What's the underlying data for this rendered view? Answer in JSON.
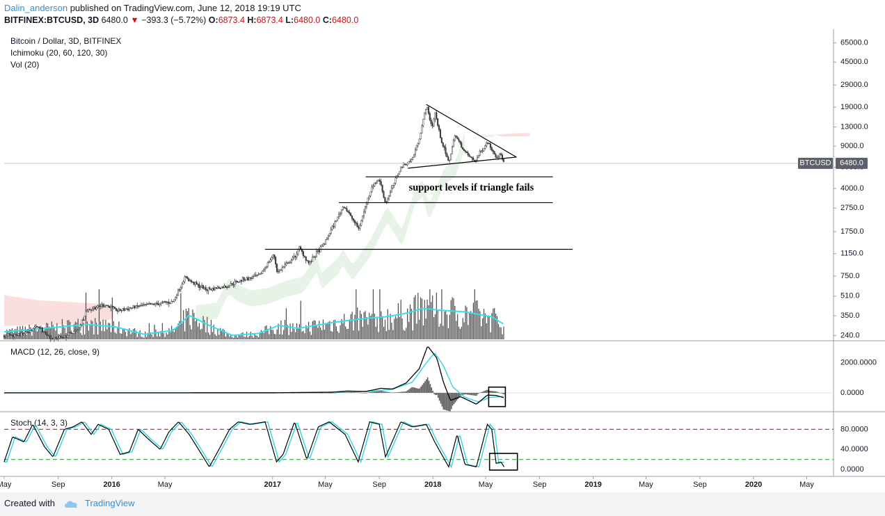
{
  "header": {
    "author": "Dalin_anderson",
    "published": "published on TradingView.com, June 12, 2018 19:19 UTC",
    "symbol": "BITFINEX:BTCUSD, 3D",
    "last": "6480.0",
    "change": "−393.3 (−5.72%)",
    "o_label": "O:",
    "o_value": "6873.4",
    "h_label": "H:",
    "h_value": "6873.4",
    "l_label": "L:",
    "l_value": "6480.0",
    "c_label": "C:",
    "c_value": "6480.0"
  },
  "legend": {
    "main_title": "Bitcoin / Dollar, 3D, BITFINEX",
    "ichimoku": "Ichimoku (20, 60, 120, 30)",
    "volume": "Vol (20)",
    "macd": "MACD (12, 26, close, 9)",
    "stoch": "Stoch (14, 3, 3)"
  },
  "price_scale": {
    "labels": [
      "65000.0",
      "45000.0",
      "29000.0",
      "19000.0",
      "13000.0",
      "9000.0",
      "6000.0",
      "4000.0",
      "2750.0",
      "1750.0",
      "1150.0",
      "750.0",
      "510.0",
      "350.0",
      "240.0"
    ],
    "last_price_badge": "6480.0",
    "symbol_badge": "BTCUSD"
  },
  "macd_scale": {
    "labels": [
      "2000.0000",
      "0.0000"
    ]
  },
  "stoch_scale": {
    "labels": [
      "80.0000",
      "40.0000",
      "0.0000"
    ]
  },
  "time_axis": {
    "labels": [
      "May",
      "Sep",
      "2016",
      "May",
      "2017",
      "May",
      "Sep",
      "2018",
      "May",
      "Sep",
      "2019",
      "May",
      "Sep",
      "2020",
      "May"
    ],
    "bold": [
      "2016",
      "2017",
      "2018",
      "2019",
      "2020"
    ]
  },
  "annotations": {
    "support_text": "support levels if triangle fails"
  },
  "footer": {
    "created_with": "Created with",
    "brand": "TradingView"
  },
  "colors": {
    "candles": "#3b3b3b",
    "volume_ma": "#34e0ec",
    "macd_line": "#000000",
    "signal_line": "#3ad6e6",
    "histogram": "#595959",
    "stoch_k": "#000000",
    "stoch_d": "#3ad6e6",
    "overbought": "#d32f2f",
    "oversold": "#4caf50",
    "cloud_bull": "#e6f3e6",
    "cloud_bear": "#fbdede",
    "author": "#2f8fd8",
    "negative": "#c0181b"
  },
  "chart_data": {
    "type": "candlestick",
    "symbol": "BITFINEX:BTCUSD",
    "interval": "3D",
    "scale": "log",
    "ohlc_last": {
      "open": 6873.4,
      "high": 6873.4,
      "low": 6480.0,
      "close": 6480.0
    },
    "price_path": [
      [
        "2015-05-01",
        240
      ],
      [
        "2015-06-15",
        245
      ],
      [
        "2015-07-15",
        285
      ],
      [
        "2015-08-20",
        225
      ],
      [
        "2015-09-15",
        235
      ],
      [
        "2015-10-15",
        265
      ],
      [
        "2015-11-05",
        390
      ],
      [
        "2015-12-15",
        435
      ],
      [
        "2016-01-15",
        385
      ],
      [
        "2016-03-01",
        420
      ],
      [
        "2016-05-20",
        460
      ],
      [
        "2016-06-16",
        740
      ],
      [
        "2016-07-05",
        650
      ],
      [
        "2016-08-05",
        580
      ],
      [
        "2016-09-15",
        610
      ],
      [
        "2016-10-25",
        700
      ],
      [
        "2016-12-01",
        750
      ],
      [
        "2017-01-04",
        1130
      ],
      [
        "2017-01-12",
        800
      ],
      [
        "2017-02-20",
        1080
      ],
      [
        "2017-03-03",
        1280
      ],
      [
        "2017-03-25",
        950
      ],
      [
        "2017-05-01",
        1450
      ],
      [
        "2017-06-12",
        2900
      ],
      [
        "2017-07-16",
        1850
      ],
      [
        "2017-08-15",
        4200
      ],
      [
        "2017-09-01",
        4800
      ],
      [
        "2017-09-15",
        3000
      ],
      [
        "2017-10-20",
        6000
      ],
      [
        "2017-11-15",
        7000
      ],
      [
        "2017-12-01",
        10500
      ],
      [
        "2017-12-17",
        19500
      ],
      [
        "2017-12-30",
        13000
      ],
      [
        "2018-01-06",
        17000
      ],
      [
        "2018-01-17",
        11000
      ],
      [
        "2018-02-06",
        6500
      ],
      [
        "2018-02-20",
        11200
      ],
      [
        "2018-03-15",
        8000
      ],
      [
        "2018-04-06",
        6700
      ],
      [
        "2018-05-05",
        9800
      ],
      [
        "2018-05-25",
        7400
      ],
      [
        "2018-06-05",
        7600
      ],
      [
        "2018-06-12",
        6480
      ]
    ],
    "triangle": {
      "upper": [
        [
          "2017-12-17",
          20000
        ],
        [
          "2018-07-10",
          7300
        ]
      ],
      "lower": [
        [
          "2017-11-05",
          5900
        ],
        [
          "2018-07-10",
          7300
        ]
      ]
    },
    "support_levels": [
      {
        "price": 5000,
        "from": "2017-08-01",
        "to": "2018-10-01"
      },
      {
        "price": 3050,
        "from": "2017-06-01",
        "to": "2018-10-01"
      },
      {
        "price": 1250,
        "from": "2016-12-15",
        "to": "2018-11-15"
      }
    ],
    "volume_ma_path": [
      [
        "2015-05-01",
        0.15
      ],
      [
        "2015-08-01",
        0.22
      ],
      [
        "2015-11-05",
        0.3
      ],
      [
        "2016-01-10",
        0.25
      ],
      [
        "2016-03-15",
        0.1
      ],
      [
        "2016-05-20",
        0.18
      ],
      [
        "2016-06-25",
        0.48
      ],
      [
        "2016-08-05",
        0.3
      ],
      [
        "2016-10-01",
        0.08
      ],
      [
        "2016-12-01",
        0.12
      ],
      [
        "2017-01-15",
        0.28
      ],
      [
        "2017-03-01",
        0.22
      ],
      [
        "2017-05-20",
        0.34
      ],
      [
        "2017-08-01",
        0.42
      ],
      [
        "2017-09-15",
        0.45
      ],
      [
        "2017-11-01",
        0.52
      ],
      [
        "2017-12-10",
        0.62
      ],
      [
        "2018-01-20",
        0.58
      ],
      [
        "2018-03-15",
        0.55
      ],
      [
        "2018-05-15",
        0.45
      ],
      [
        "2018-06-12",
        0.3
      ]
    ],
    "macd_path": [
      [
        "2015-05-01",
        0
      ],
      [
        "2017-01-05",
        5
      ],
      [
        "2017-05-15",
        40
      ],
      [
        "2017-06-20",
        120
      ],
      [
        "2017-08-01",
        90
      ],
      [
        "2017-09-05",
        300
      ],
      [
        "2017-10-01",
        250
      ],
      [
        "2017-11-01",
        650
      ],
      [
        "2017-12-01",
        1600
      ],
      [
        "2017-12-20",
        3100
      ],
      [
        "2018-01-10",
        2300
      ],
      [
        "2018-01-25",
        700
      ],
      [
        "2018-02-10",
        -500
      ],
      [
        "2018-03-05",
        -250
      ],
      [
        "2018-04-10",
        -750
      ],
      [
        "2018-05-05",
        -150
      ],
      [
        "2018-05-25",
        -170
      ],
      [
        "2018-06-12",
        -330
      ]
    ],
    "signal_path": [
      [
        "2015-05-01",
        0
      ],
      [
        "2017-01-05",
        3
      ],
      [
        "2017-06-20",
        60
      ],
      [
        "2017-08-15",
        110
      ],
      [
        "2017-10-01",
        240
      ],
      [
        "2017-11-15",
        700
      ],
      [
        "2017-12-15",
        1900
      ],
      [
        "2018-01-05",
        2650
      ],
      [
        "2018-01-25",
        1800
      ],
      [
        "2018-02-15",
        400
      ],
      [
        "2018-03-15",
        -300
      ],
      [
        "2018-04-15",
        -600
      ],
      [
        "2018-05-10",
        -300
      ],
      [
        "2018-06-12",
        -230
      ]
    ],
    "stoch_path": [
      [
        "2015-05-01",
        15
      ],
      [
        "2015-05-20",
        65
      ],
      [
        "2015-06-15",
        55
      ],
      [
        "2015-07-05",
        90
      ],
      [
        "2015-08-01",
        45
      ],
      [
        "2015-08-20",
        25
      ],
      [
        "2015-09-15",
        80
      ],
      [
        "2015-10-05",
        85
      ],
      [
        "2015-10-25",
        95
      ],
      [
        "2015-11-15",
        70
      ],
      [
        "2015-12-01",
        90
      ],
      [
        "2015-12-25",
        80
      ],
      [
        "2016-01-20",
        30
      ],
      [
        "2016-02-10",
        35
      ],
      [
        "2016-03-01",
        80
      ],
      [
        "2016-03-25",
        60
      ],
      [
        "2016-04-20",
        40
      ],
      [
        "2016-05-10",
        75
      ],
      [
        "2016-06-01",
        95
      ],
      [
        "2016-06-25",
        70
      ],
      [
        "2016-07-20",
        35
      ],
      [
        "2016-08-10",
        5
      ],
      [
        "2016-09-01",
        40
      ],
      [
        "2016-09-25",
        80
      ],
      [
        "2016-10-15",
        95
      ],
      [
        "2016-11-10",
        90
      ],
      [
        "2016-12-15",
        95
      ],
      [
        "2017-01-10",
        15
      ],
      [
        "2017-01-25",
        30
      ],
      [
        "2017-02-20",
        95
      ],
      [
        "2017-03-20",
        20
      ],
      [
        "2017-04-15",
        85
      ],
      [
        "2017-05-10",
        95
      ],
      [
        "2017-06-15",
        70
      ],
      [
        "2017-07-15",
        15
      ],
      [
        "2017-08-10",
        95
      ],
      [
        "2017-09-01",
        90
      ],
      [
        "2017-09-15",
        25
      ],
      [
        "2017-10-20",
        95
      ],
      [
        "2017-11-15",
        85
      ],
      [
        "2017-12-17",
        90
      ],
      [
        "2018-01-05",
        55
      ],
      [
        "2018-02-06",
        5
      ],
      [
        "2018-02-25",
        70
      ],
      [
        "2018-03-15",
        10
      ],
      [
        "2018-04-10",
        5
      ],
      [
        "2018-05-05",
        90
      ],
      [
        "2018-05-15",
        80
      ],
      [
        "2018-05-25",
        12
      ],
      [
        "2018-06-05",
        15
      ],
      [
        "2018-06-12",
        5
      ]
    ],
    "stoch_levels": {
      "overbought": 80,
      "oversold": 20
    },
    "macd_ylim": [
      -1200,
      3400
    ],
    "stoch_ylim": [
      0,
      100
    ],
    "price_ylim": [
      220,
      80000
    ],
    "xlim": [
      "2015-05-01",
      "2020-07-01"
    ]
  }
}
